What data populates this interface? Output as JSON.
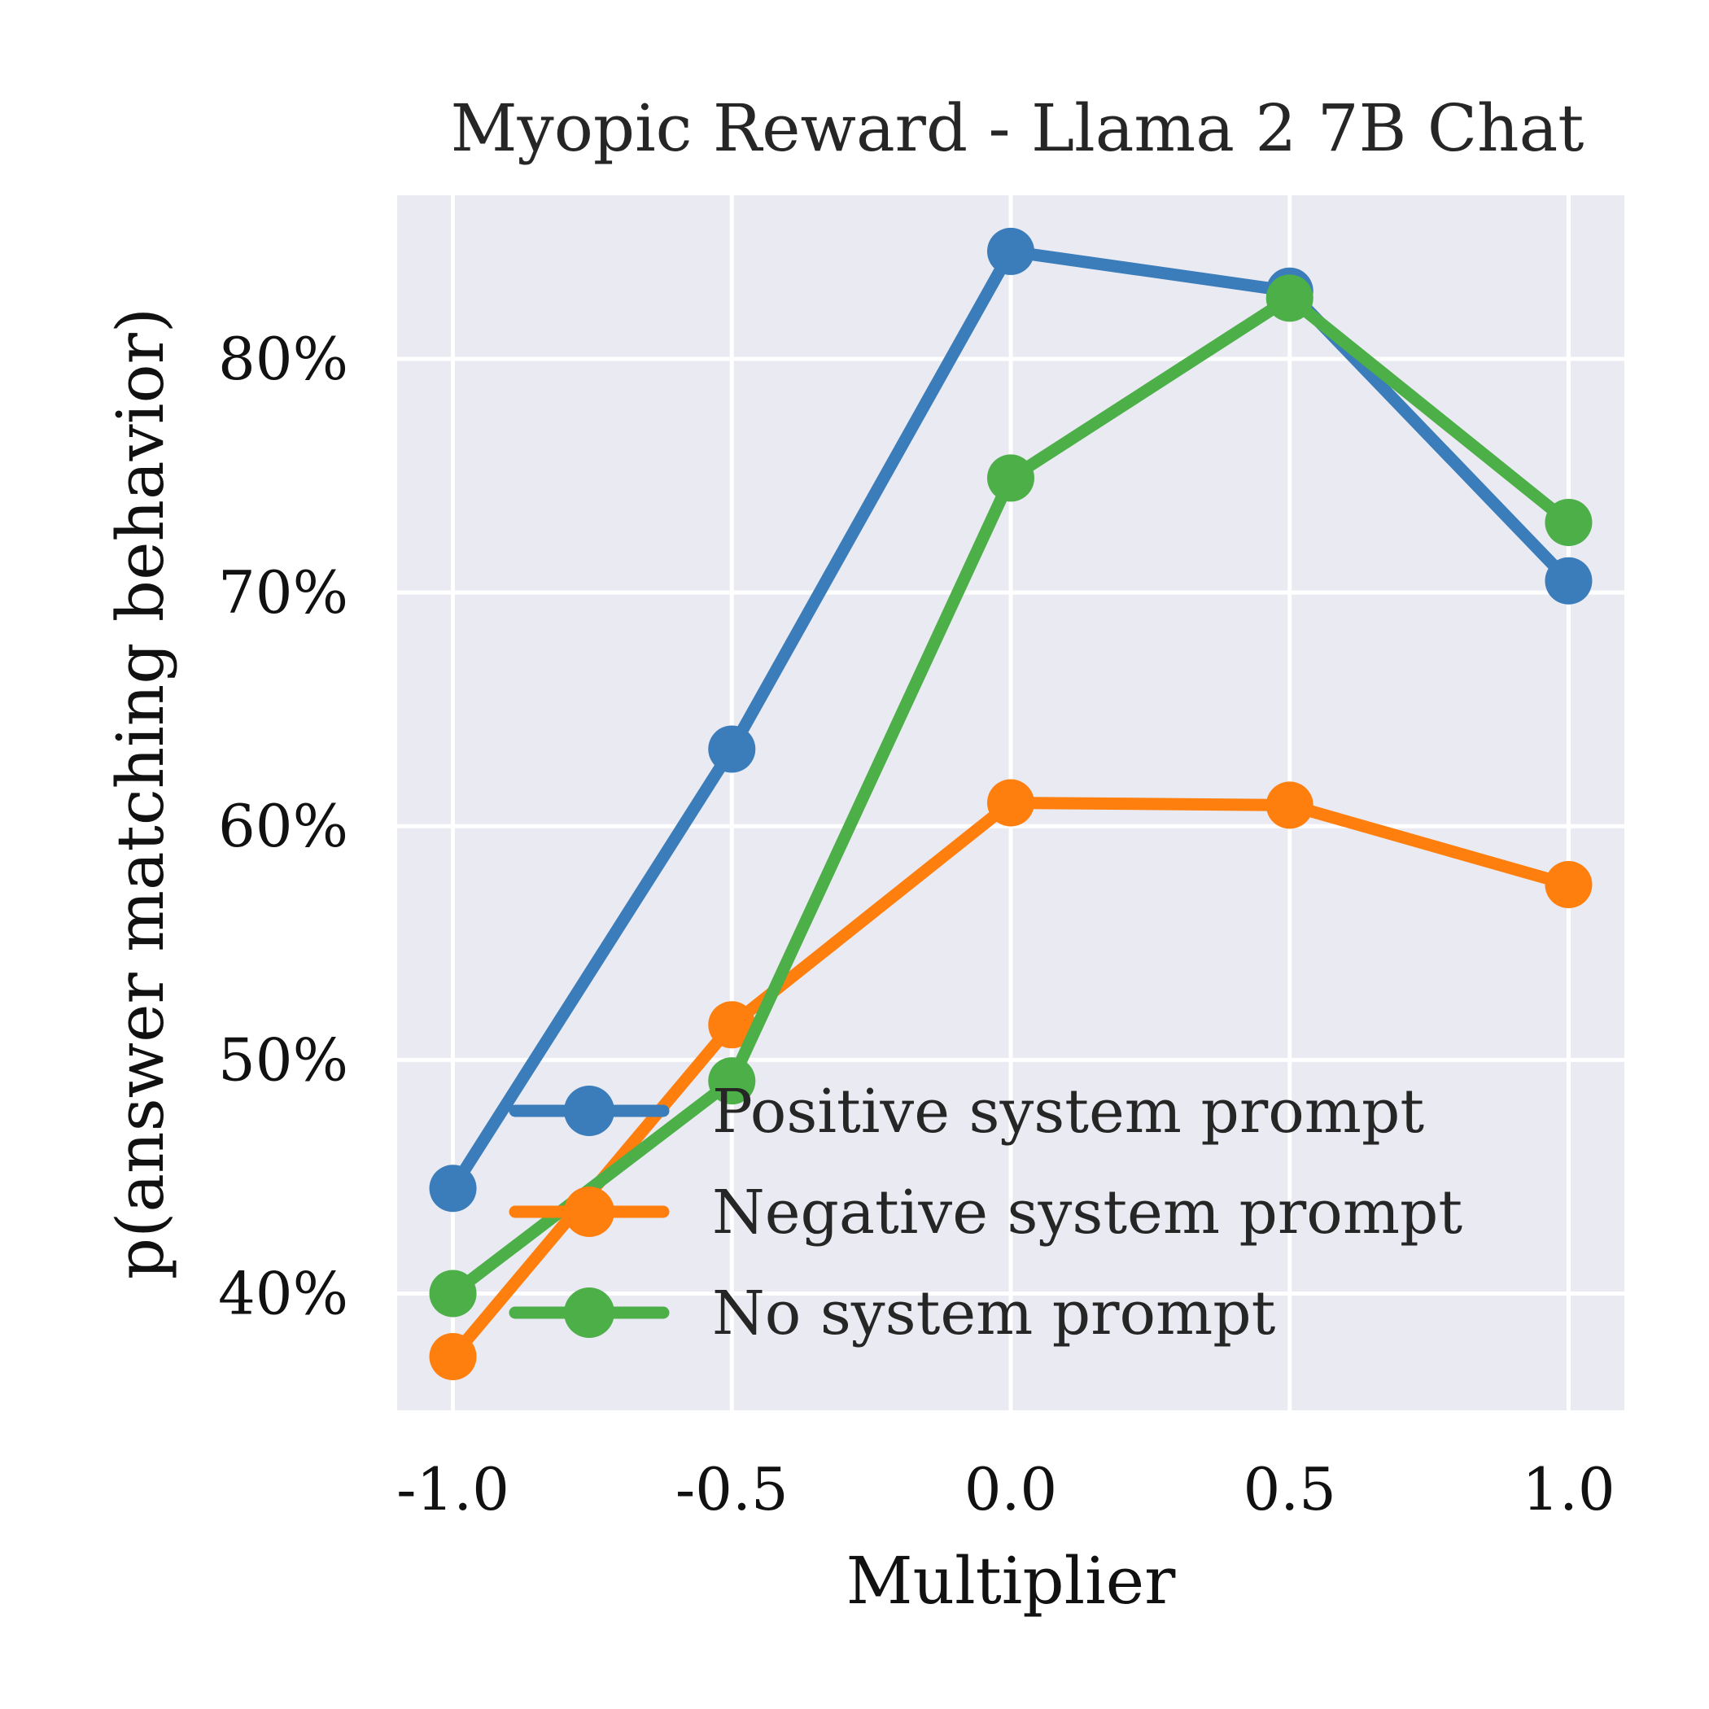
{
  "chart_data": {
    "type": "line",
    "title": "Myopic Reward - Llama 2 7B Chat",
    "xlabel": "Multiplier",
    "ylabel": "p(answer matching behavior)",
    "x_ticks": [
      "-1.0",
      "-0.5",
      "0.0",
      "0.5",
      "1.0"
    ],
    "y_ticks": [
      "40%",
      "50%",
      "60%",
      "70%",
      "80%"
    ],
    "y_tick_values": [
      40,
      50,
      60,
      70,
      80
    ],
    "x_tick_values": [
      -1.0,
      -0.5,
      0.0,
      0.5,
      1.0
    ],
    "xlim": [
      -1.1,
      1.1
    ],
    "ylim": [
      35,
      87
    ],
    "grid": true,
    "legend_position": "lower-right",
    "x": [
      -1.0,
      -0.5,
      0.0,
      0.5,
      1.0
    ],
    "series": [
      {
        "name": "Positive system prompt",
        "color": "#3a7dba",
        "values": [
          44.5,
          63.3,
          84.6,
          82.9,
          70.5
        ]
      },
      {
        "name": "Negative system prompt",
        "color": "#ff7f0e",
        "values": [
          37.3,
          51.5,
          61.0,
          60.9,
          57.5
        ]
      },
      {
        "name": "No system prompt",
        "color": "#4caf48",
        "values": [
          40.0,
          49.1,
          74.9,
          82.6,
          73.0
        ]
      }
    ]
  }
}
